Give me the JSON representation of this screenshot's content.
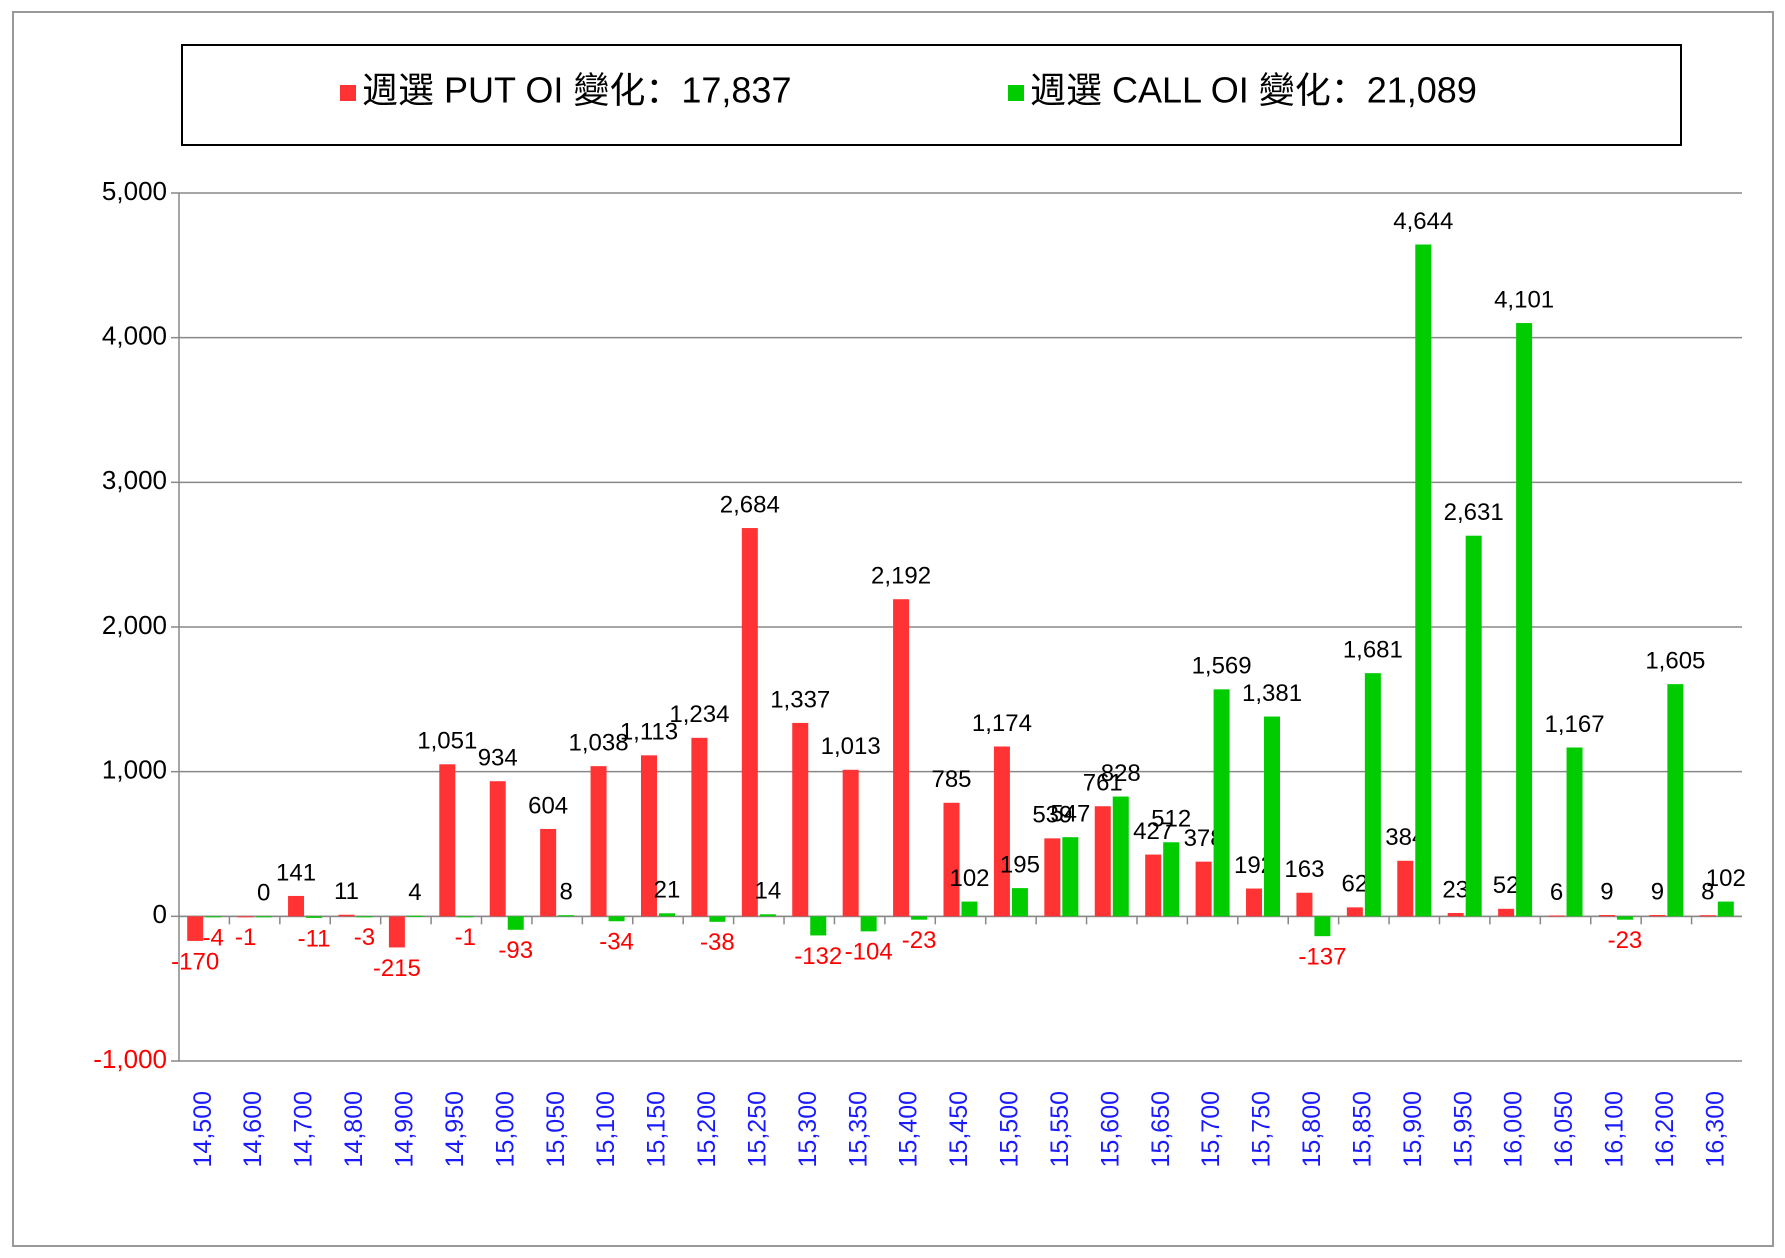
{
  "chart_data": {
    "type": "bar",
    "categories": [
      "14,500",
      "14,600",
      "14,700",
      "14,800",
      "14,900",
      "14,950",
      "15,000",
      "15,050",
      "15,100",
      "15,150",
      "15,200",
      "15,250",
      "15,300",
      "15,350",
      "15,400",
      "15,450",
      "15,500",
      "15,550",
      "15,600",
      "15,650",
      "15,700",
      "15,750",
      "15,800",
      "15,850",
      "15,900",
      "15,950",
      "16,000",
      "16,050",
      "16,100",
      "16,200",
      "16,300"
    ],
    "series": [
      {
        "name": "週選 PUT OI 變化：17,837",
        "color": "#ff3333",
        "values": [
          -170,
          -1,
          141,
          11,
          -215,
          1051,
          934,
          604,
          1038,
          1113,
          1234,
          2684,
          1337,
          1013,
          2192,
          785,
          1174,
          539,
          761,
          427,
          378,
          192,
          163,
          62,
          384,
          23,
          52,
          6,
          9,
          9,
          8
        ],
        "value_labels": [
          "-170",
          "-1",
          "141",
          "11",
          "-215",
          "1,051",
          "934",
          "604",
          "1,038",
          "1,113",
          "1,234",
          "2,684",
          "1,337",
          "1,013",
          "2,192",
          "785",
          "1,174",
          "539",
          "761",
          "427",
          "378",
          "192",
          "163",
          "62",
          "384",
          "23",
          "52",
          "6",
          "9",
          "9",
          "8"
        ]
      },
      {
        "name": "週選 CALL OI 變化：21,089",
        "color": "#00cc00",
        "values": [
          -4,
          0,
          -11,
          -3,
          4,
          -1,
          -93,
          8,
          -34,
          21,
          -38,
          14,
          -132,
          -104,
          -23,
          102,
          195,
          547,
          828,
          512,
          1569,
          1381,
          -137,
          1681,
          4644,
          2631,
          4101,
          1167,
          -23,
          1605,
          102
        ],
        "value_labels": [
          "-4",
          "0",
          "-11",
          "-3",
          "4",
          "-1",
          "-93",
          "8",
          "-34",
          "21",
          "-38",
          "14",
          "-132",
          "-104",
          "-23",
          "102",
          "195",
          "547",
          "828",
          "512",
          "1,569",
          "1,381",
          "-137",
          "1,681",
          "4,644",
          "2,631",
          "4,101",
          "1,167",
          "-23",
          "1,605",
          "102"
        ]
      }
    ],
    "ylim": [
      -1000,
      5000
    ],
    "yticks": [
      {
        "value": -1000,
        "label": "-1,000"
      },
      0,
      {
        "value": 1000,
        "label": "1,000"
      },
      {
        "value": 2000,
        "label": "2,000"
      },
      {
        "value": 3000,
        "label": "3,000"
      },
      {
        "value": 4000,
        "label": "4,000"
      },
      {
        "value": 5000,
        "label": "5,000"
      }
    ],
    "grid": true,
    "negative_color": "#ff0000"
  }
}
